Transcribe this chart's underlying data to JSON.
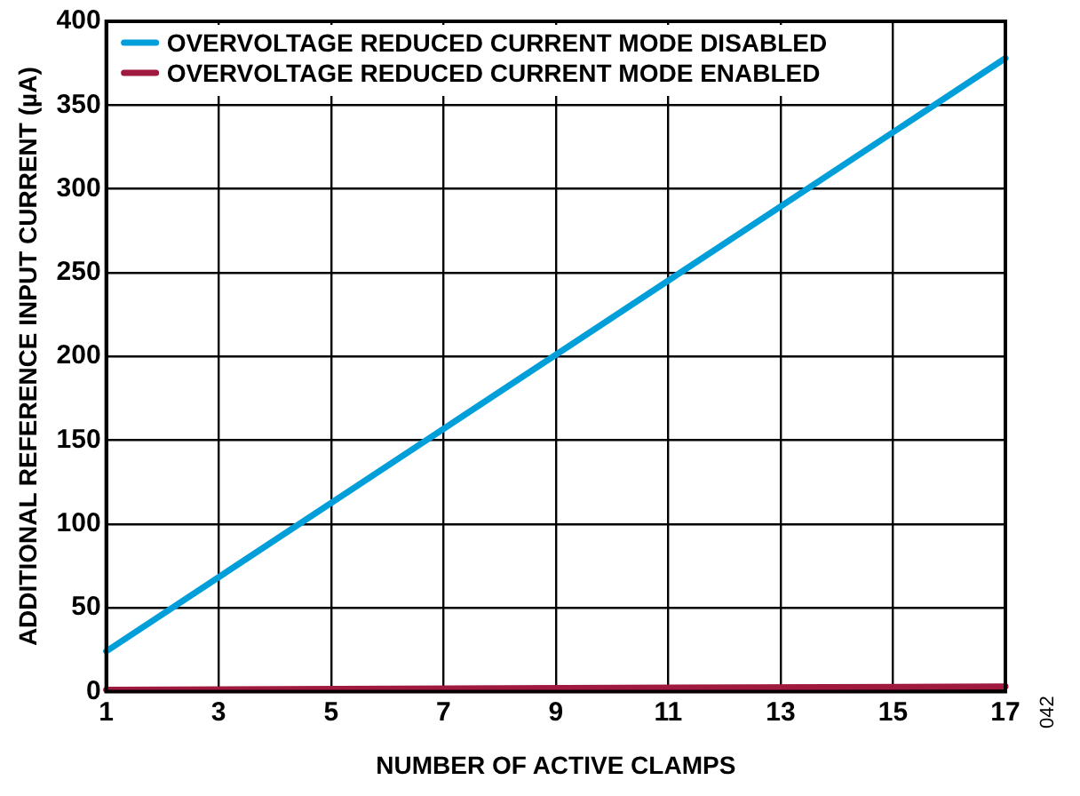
{
  "chart_data": {
    "type": "line",
    "xlabel": "NUMBER OF ACTIVE CLAMPS",
    "ylabel": "ADDITIONAL REFERENCE INPUT CURRENT (µA)",
    "x": [
      1,
      17
    ],
    "series": [
      {
        "name": "OVERVOLTAGE REDUCED CURRENT MODE DISABLED",
        "color": "#009fda",
        "values": [
          24,
          378
        ]
      },
      {
        "name": "OVERVOLTAGE REDUCED CURRENT MODE ENABLED",
        "color": "#a0193e",
        "values": [
          1,
          3
        ]
      }
    ],
    "xlim": [
      1,
      17
    ],
    "xticks": [
      1,
      3,
      5,
      7,
      9,
      11,
      13,
      15,
      17
    ],
    "ylim": [
      0,
      400
    ],
    "yticks": [
      0,
      50,
      100,
      150,
      200,
      250,
      300,
      350,
      400
    ],
    "grid": true,
    "legend": "top left",
    "marker": "none",
    "line_style": "solid",
    "annotations": [
      "042"
    ]
  }
}
